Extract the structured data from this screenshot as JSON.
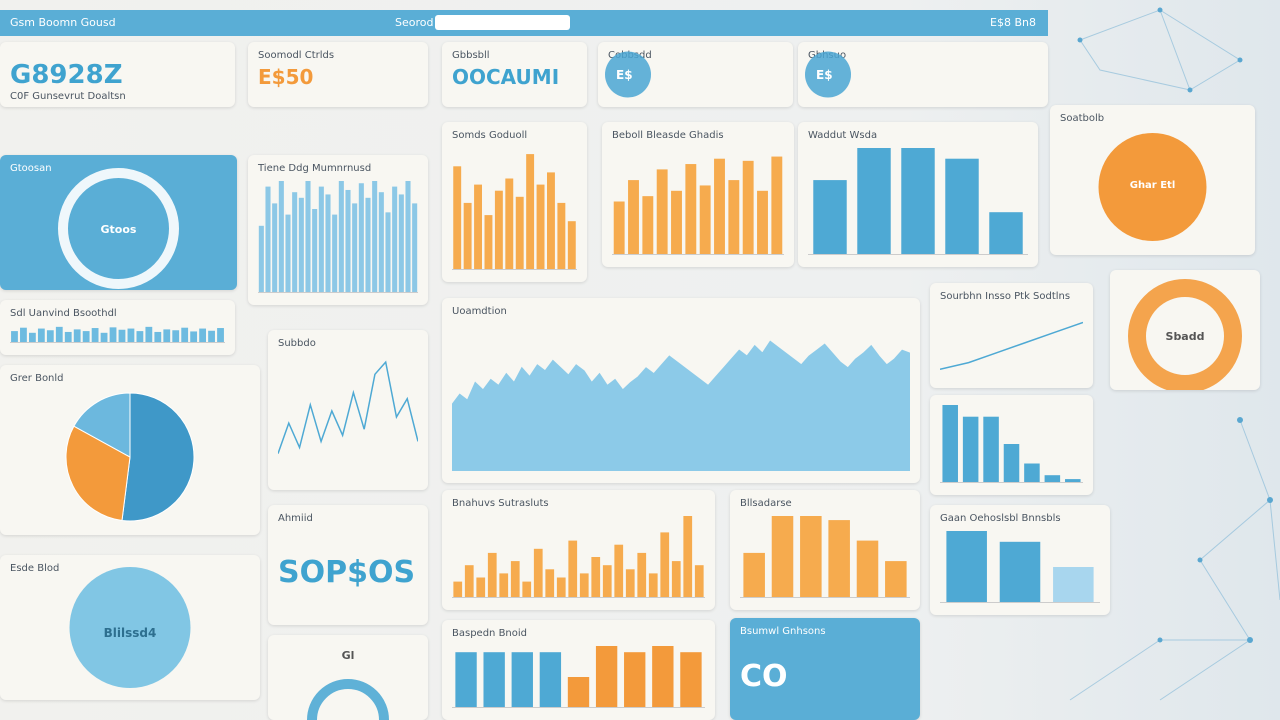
{
  "header": {
    "brand": "Gsm Boomn Gousd",
    "search": "Seorod",
    "account": "E$8 Bn8"
  },
  "panels": [
    {
      "title": "G8928Z",
      "subtitle": "C0F Gunsevrut Doaltsn",
      "accent": "#3fa3cf"
    },
    {
      "title": "Soomodl Ctrlds",
      "value": "E$50",
      "accent": "#f39a3b"
    },
    {
      "title": "Gbbsbll",
      "value": "OOCAUMI",
      "accent": "#3fa3cf"
    },
    {
      "title": "Cobbsdd",
      "value": "E$",
      "accent": "#4aa6d3"
    },
    {
      "title": "Gbhsuo",
      "value": "E$",
      "accent": "#4aa6d3"
    },
    {
      "title": "Gtoosan",
      "value": "Gtoos",
      "background": "#5aaed6",
      "accent": "#ffffff"
    },
    {
      "title": "Tiene Ddg Mumnrnusd",
      "chart": {
        "type": "bar",
        "ylim": [
          0,
          100
        ],
        "series": [
          {
            "color": "#8cc8e6",
            "values": [
              60,
              95,
              80,
              100,
              70,
              90,
              85,
              100,
              75,
              95,
              88,
              70,
              100,
              92,
              80,
              98,
              85,
              100,
              90,
              72,
              95,
              88,
              100,
              80
            ]
          }
        ]
      }
    },
    {
      "title": "Somds Goduoll",
      "chart": {
        "type": "bar",
        "ylim": [
          0,
          100
        ],
        "series": [
          {
            "color": "#f6ab4e",
            "values": [
              85,
              55,
              70,
              45,
              65,
              75,
              60,
              95,
              70,
              80,
              55,
              40
            ]
          }
        ]
      }
    },
    {
      "title": "Beboll Bleasde Ghadis",
      "chart": {
        "type": "bar",
        "ylim": [
          0,
          100
        ],
        "series": [
          {
            "color": "#f6ab4e",
            "values": [
              50,
              70,
              55,
              80,
              60,
              85,
              65,
              90,
              70,
              88,
              60,
              92
            ]
          }
        ]
      }
    },
    {
      "title": "Waddut Wsda",
      "chart": {
        "type": "bar",
        "ylim": [
          0,
          100
        ],
        "series": [
          {
            "color": "#4ea9d4",
            "values": [
              70,
              100,
              100,
              90,
              40
            ]
          }
        ]
      }
    },
    {
      "title": "Soatbolb",
      "value": "Ghar Etl",
      "chart": {
        "type": "pie",
        "values": [
          100
        ],
        "colors": [
          "#f39a3b"
        ]
      }
    },
    {
      "title": "Sdl Uanvind Bsoothdl",
      "chart": {
        "type": "bar",
        "ylim": [
          0,
          100
        ],
        "series": [
          {
            "color": "#6dbbe0",
            "values": [
              70,
              90,
              60,
              85,
              75,
              95,
              65,
              80,
              70,
              88,
              60,
              92,
              78,
              85,
              70,
              95,
              65,
              80,
              75,
              90,
              68,
              85,
              72,
              88
            ]
          }
        ]
      }
    },
    {
      "title": "Grer Bonld",
      "chart": {
        "type": "pie",
        "values": [
          52,
          31,
          17
        ],
        "colors": [
          "#3f98c8",
          "#f39a3b",
          "#6cb8de"
        ]
      }
    },
    {
      "title": "Subbdo",
      "chart": {
        "type": "line",
        "ylim": [
          0,
          100
        ],
        "color": "#4ea9d4",
        "values": [
          20,
          45,
          25,
          60,
          30,
          55,
          35,
          70,
          40,
          85,
          95,
          50,
          65,
          30
        ]
      }
    },
    {
      "title": "Uoamdtion",
      "chart": {
        "type": "area",
        "ylim": [
          0,
          100
        ],
        "color": "#8ccae8",
        "values": [
          45,
          52,
          48,
          60,
          55,
          62,
          58,
          66,
          60,
          70,
          64,
          72,
          68,
          75,
          70,
          65,
          72,
          68,
          60,
          66,
          58,
          62,
          55,
          60,
          64,
          70,
          66,
          72,
          78,
          74,
          70,
          66,
          62,
          58,
          64,
          70,
          76,
          82,
          78,
          85,
          80,
          88,
          84,
          80,
          76,
          72,
          78,
          82,
          86,
          80,
          74,
          70,
          76,
          80,
          85,
          78,
          72,
          76,
          82,
          80
        ]
      }
    },
    {
      "title": "Sourbhn Insso Ptk Sodtlns",
      "chart": {
        "type": "line",
        "ylim": [
          0,
          100
        ],
        "color": "#4ea9d4",
        "values": [
          10,
          20,
          35,
          50,
          65,
          80
        ]
      }
    },
    {
      "value": "Sbadd",
      "accent": "#f39a3b"
    },
    {
      "chart": {
        "type": "bar",
        "ylim": [
          0,
          100
        ],
        "series": [
          {
            "color": "#4ea9d4",
            "values": [
              100,
              85,
              85,
              50,
              25,
              10,
              5
            ]
          }
        ]
      }
    },
    {
      "title": "Ahmiid",
      "value": "SOP$OS",
      "accent": "#3fa3cf"
    },
    {
      "title": "Bnahuvs Sutrasluts",
      "chart": {
        "type": "bar",
        "ylim": [
          0,
          100
        ],
        "series": [
          {
            "color": "#f6ab4e",
            "values": [
              20,
              40,
              25,
              55,
              30,
              45,
              20,
              60,
              35,
              25,
              70,
              30,
              50,
              40,
              65,
              35,
              55,
              30,
              80,
              45,
              100,
              40
            ]
          }
        ]
      }
    },
    {
      "title": "Bllsadarse",
      "chart": {
        "type": "bar",
        "ylim": [
          0,
          100
        ],
        "series": [
          {
            "color": "#f6ab4e",
            "values": [
              55,
              100,
              100,
              95,
              70,
              45
            ]
          }
        ]
      }
    },
    {
      "title": "Gaan Oehoslsbl Bnnsbls",
      "chart": {
        "type": "bar",
        "ylim": [
          0,
          100
        ],
        "series": [
          {
            "color": "#4ea9d4",
            "values": [
              100,
              85
            ]
          },
          {
            "color": "#a8d6ee",
            "values": [
              50
            ]
          }
        ]
      }
    },
    {
      "title": "Esde Blod",
      "value": "Blilssd4",
      "accent": "#6cbde2"
    },
    {
      "value": "Gl",
      "accent": "#4ea9d4"
    },
    {
      "title": "Baspedn Bnoid",
      "chart": {
        "type": "bar",
        "ylim": [
          0,
          100
        ],
        "series": [
          {
            "color": "#4ea9d4",
            "values": [
              90,
              90,
              90,
              90
            ]
          },
          {
            "color": "#f39a3b",
            "values": [
              50,
              100,
              90,
              100,
              90
            ]
          }
        ]
      }
    },
    {
      "title": "Bsumwl Gnhsons",
      "value": "CO",
      "background": "#5aaed6",
      "accent": "#ffffff"
    }
  ]
}
